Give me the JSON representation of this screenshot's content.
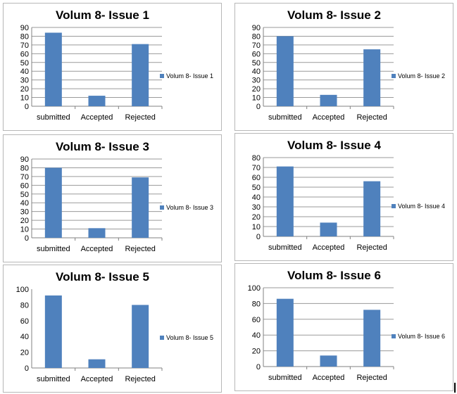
{
  "chart_data": [
    {
      "type": "bar",
      "title": "Volum 8- Issue 1",
      "categories": [
        "submitted",
        "Accepted",
        "Rejected"
      ],
      "series": [
        {
          "name": "Volum 8- Issue 1",
          "values": [
            84,
            12,
            71
          ],
          "color": "#4f81bd"
        }
      ],
      "ylim": [
        0,
        90
      ],
      "yticks": [
        "0",
        "10",
        "20",
        "30",
        "40",
        "50",
        "60",
        "70",
        "80",
        "90"
      ],
      "grid": true,
      "legend": "right"
    },
    {
      "type": "bar",
      "title": "Volum 8- Issue 2",
      "categories": [
        "submitted",
        "Accepted",
        "Rejected"
      ],
      "series": [
        {
          "name": "Volum 8- Issue 2",
          "values": [
            80,
            13,
            65
          ],
          "color": "#4f81bd"
        }
      ],
      "ylim": [
        0,
        90
      ],
      "yticks": [
        "0",
        "10",
        "20",
        "30",
        "40",
        "50",
        "60",
        "70",
        "80",
        "90"
      ],
      "grid": true,
      "legend": "right"
    },
    {
      "type": "bar",
      "title": "Volum 8- Issue 3",
      "categories": [
        "submitted",
        "Accepted",
        "Rejected"
      ],
      "series": [
        {
          "name": "Volum 8- Issue 3",
          "values": [
            80,
            11,
            69
          ],
          "color": "#4f81bd"
        }
      ],
      "ylim": [
        0,
        90
      ],
      "yticks": [
        "0",
        "10",
        "20",
        "30",
        "40",
        "50",
        "60",
        "70",
        "80",
        "90"
      ],
      "grid": true,
      "legend": "right"
    },
    {
      "type": "bar",
      "title": "Volum 8- Issue 4",
      "categories": [
        "submitted",
        "Accepted",
        "Rejected"
      ],
      "series": [
        {
          "name": "Volum 8- Issue 4",
          "values": [
            71,
            14,
            56
          ],
          "color": "#4f81bd"
        }
      ],
      "ylim": [
        0,
        80
      ],
      "yticks": [
        "0",
        "10",
        "20",
        "30",
        "40",
        "50",
        "60",
        "70",
        "80"
      ],
      "grid": true,
      "legend": "right"
    },
    {
      "type": "bar",
      "title": "Volum 8- Issue 5",
      "categories": [
        "submitted",
        "Accepted",
        "Rejected"
      ],
      "series": [
        {
          "name": "Volum 8- Issue 5",
          "values": [
            92,
            11,
            80
          ],
          "color": "#4f81bd"
        }
      ],
      "ylim": [
        0,
        100
      ],
      "yticks": [
        "0",
        "20",
        "40",
        "60",
        "80",
        "100"
      ],
      "grid": false,
      "legend": "right"
    },
    {
      "type": "bar",
      "title": "Volum 8- Issue 6",
      "categories": [
        "submitted",
        "Accepted",
        "Rejected"
      ],
      "series": [
        {
          "name": "Volum 8- Issue 6",
          "values": [
            86,
            14,
            72
          ],
          "color": "#4f81bd"
        }
      ],
      "ylim": [
        0,
        100
      ],
      "yticks": [
        "0",
        "20",
        "40",
        "60",
        "80",
        "100"
      ],
      "grid": true,
      "legend": "right"
    }
  ]
}
